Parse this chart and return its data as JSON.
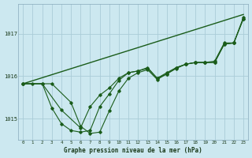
{
  "title": "Graphe pression niveau de la mer (hPa)",
  "bg_color": "#cce8f0",
  "grid_color": "#aaccd8",
  "line_color": "#1a5c1a",
  "xlim": [
    -0.5,
    23.5
  ],
  "ylim": [
    1014.5,
    1017.7
  ],
  "yticks": [
    1015,
    1016,
    1017
  ],
  "xticks": [
    0,
    1,
    2,
    3,
    4,
    5,
    6,
    7,
    8,
    9,
    10,
    11,
    12,
    13,
    14,
    15,
    16,
    17,
    18,
    19,
    20,
    21,
    22,
    23
  ],
  "series": [
    {
      "x": [
        0,
        23
      ],
      "y": [
        1015.82,
        1017.45
      ],
      "marker": "none",
      "lw": 1.0
    },
    {
      "x": [
        0,
        1,
        2,
        3,
        4,
        5,
        6,
        7,
        8,
        9,
        10,
        11,
        12,
        13,
        14,
        15,
        16,
        17,
        18,
        19,
        20,
        21,
        22,
        23
      ],
      "y": [
        1015.82,
        1015.82,
        1015.82,
        1015.25,
        1014.88,
        1014.72,
        1014.68,
        1014.72,
        1015.28,
        1015.58,
        1015.9,
        1016.08,
        1016.12,
        1016.18,
        1015.95,
        1016.08,
        1016.2,
        1016.28,
        1016.32,
        1016.32,
        1016.35,
        1016.78,
        1016.78,
        1017.38
      ],
      "marker": "D",
      "lw": 0.8
    },
    {
      "x": [
        0,
        2,
        4,
        6,
        7,
        8,
        9,
        10,
        11,
        12,
        13,
        14,
        15,
        16,
        17,
        18,
        19,
        20,
        21,
        22,
        23
      ],
      "y": [
        1015.82,
        1015.82,
        1015.2,
        1014.78,
        1015.28,
        1015.55,
        1015.72,
        1015.95,
        1016.08,
        1016.12,
        1016.2,
        1015.95,
        1016.05,
        1016.18,
        1016.28,
        1016.32,
        1016.32,
        1016.32,
        1016.75,
        1016.78,
        1017.35
      ],
      "marker": "D",
      "lw": 0.8
    },
    {
      "x": [
        0,
        3,
        5,
        6,
        7,
        8,
        9,
        10,
        11,
        12,
        13,
        14,
        15,
        16,
        17,
        18,
        19,
        20,
        21,
        22,
        23
      ],
      "y": [
        1015.82,
        1015.82,
        1015.38,
        1014.82,
        1014.65,
        1014.68,
        1015.18,
        1015.65,
        1015.95,
        1016.08,
        1016.15,
        1015.92,
        1016.05,
        1016.2,
        1016.28,
        1016.32,
        1016.32,
        1016.32,
        1016.75,
        1016.78,
        1017.35
      ],
      "marker": "D",
      "lw": 0.8
    }
  ]
}
